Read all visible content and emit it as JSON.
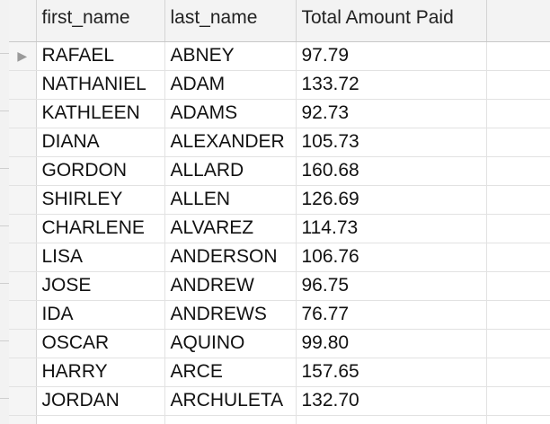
{
  "columns": {
    "first_name": "first_name",
    "last_name": "last_name",
    "total": "Total Amount Paid"
  },
  "current_row_marker": "▶",
  "rows": [
    {
      "first_name": "RAFAEL",
      "last_name": "ABNEY",
      "total": "97.79"
    },
    {
      "first_name": "NATHANIEL",
      "last_name": "ADAM",
      "total": "133.72"
    },
    {
      "first_name": "KATHLEEN",
      "last_name": "ADAMS",
      "total": "92.73"
    },
    {
      "first_name": "DIANA",
      "last_name": "ALEXANDER",
      "total": "105.73"
    },
    {
      "first_name": "GORDON",
      "last_name": "ALLARD",
      "total": "160.68"
    },
    {
      "first_name": "SHIRLEY",
      "last_name": "ALLEN",
      "total": "126.69"
    },
    {
      "first_name": "CHARLENE",
      "last_name": "ALVAREZ",
      "total": "114.73"
    },
    {
      "first_name": "LISA",
      "last_name": "ANDERSON",
      "total": "106.76"
    },
    {
      "first_name": "JOSE",
      "last_name": "ANDREW",
      "total": "96.75"
    },
    {
      "first_name": "IDA",
      "last_name": "ANDREWS",
      "total": "76.77"
    },
    {
      "first_name": "OSCAR",
      "last_name": "AQUINO",
      "total": "99.80"
    },
    {
      "first_name": "HARRY",
      "last_name": "ARCE",
      "total": "157.65"
    },
    {
      "first_name": "JORDAN",
      "last_name": "ARCHULETA",
      "total": "132.70"
    }
  ]
}
